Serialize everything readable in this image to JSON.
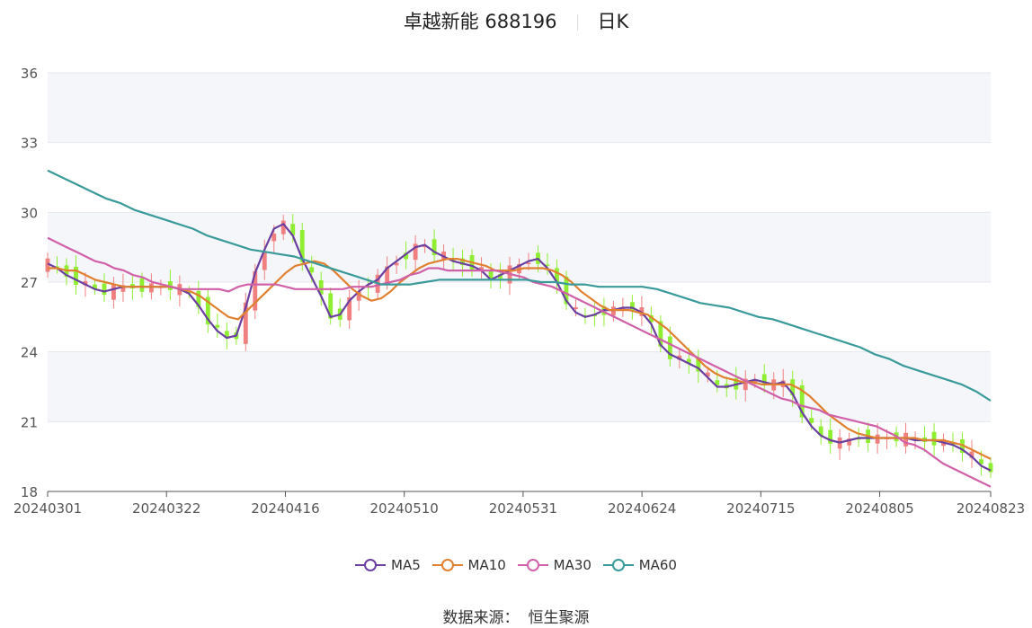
{
  "title": {
    "name": "卓越新能 688196",
    "period": "日K"
  },
  "source": {
    "label": "数据来源：",
    "value": "恒生聚源"
  },
  "colors": {
    "up": "#f08080",
    "down": "#90ee32",
    "ma5": "#6b3fa0",
    "ma10": "#e08030",
    "ma30": "#d060a8",
    "ma60": "#3a9a9a"
  },
  "chart_data": {
    "type": "candlestick",
    "ylim": [
      18,
      36
    ],
    "yticks": [
      "18",
      "21",
      "24",
      "27",
      "30",
      "33",
      "36"
    ],
    "xticks": [
      "20240301",
      "20240322",
      "20240416",
      "20240510",
      "20240531",
      "20240624",
      "20240715",
      "20240805",
      "20240823"
    ],
    "xtick_index": [
      0,
      15,
      30,
      45,
      60,
      75,
      90,
      105,
      119
    ],
    "series": [
      {
        "name": "MA5",
        "color": "#6b3fa0",
        "values": [
          27.8,
          27.6,
          27.3,
          27.1,
          26.9,
          26.7,
          26.6,
          26.7,
          26.8,
          26.8,
          26.8,
          26.8,
          26.8,
          26.8,
          26.7,
          26.5,
          26.0,
          25.4,
          24.9,
          24.6,
          24.7,
          25.9,
          27.4,
          28.4,
          29.3,
          29.5,
          29.0,
          28.0,
          27.2,
          26.4,
          25.5,
          25.6,
          26.2,
          26.6,
          26.9,
          27.1,
          27.6,
          27.9,
          28.2,
          28.5,
          28.6,
          28.3,
          28.1,
          27.9,
          27.8,
          27.7,
          27.5,
          27.1,
          27.3,
          27.5,
          27.7,
          27.9,
          28.0,
          27.6,
          27.0,
          26.2,
          25.7,
          25.5,
          25.6,
          25.8,
          25.8,
          25.9,
          25.9,
          25.7,
          25.2,
          24.3,
          23.9,
          23.7,
          23.5,
          23.3,
          22.9,
          22.5,
          22.5,
          22.6,
          22.7,
          22.8,
          22.7,
          22.6,
          22.7,
          22.2,
          21.4,
          20.8,
          20.4,
          20.2,
          20.1,
          20.2,
          20.3,
          20.3,
          20.3,
          20.3,
          20.3,
          20.3,
          20.2,
          20.2,
          20.2,
          20.1,
          20.0,
          19.8,
          19.5,
          19.1,
          18.9
        ]
      },
      {
        "name": "MA10",
        "color": "#e08030",
        "values": [
          27.6,
          27.6,
          27.5,
          27.5,
          27.3,
          27.1,
          27.0,
          26.9,
          26.8,
          26.8,
          26.8,
          26.8,
          26.8,
          26.8,
          26.7,
          26.6,
          26.4,
          26.1,
          25.8,
          25.5,
          25.4,
          25.8,
          26.2,
          26.6,
          27.0,
          27.4,
          27.7,
          27.8,
          27.9,
          27.8,
          27.5,
          27.1,
          26.7,
          26.4,
          26.2,
          26.3,
          26.6,
          27.0,
          27.3,
          27.6,
          27.8,
          27.9,
          28.0,
          28.0,
          27.9,
          27.8,
          27.7,
          27.5,
          27.5,
          27.5,
          27.6,
          27.6,
          27.6,
          27.5,
          27.3,
          27.0,
          26.6,
          26.3,
          26.0,
          25.8,
          25.8,
          25.8,
          25.7,
          25.6,
          25.3,
          25.0,
          24.6,
          24.2,
          23.8,
          23.4,
          23.1,
          22.9,
          22.8,
          22.7,
          22.7,
          22.6,
          22.6,
          22.6,
          22.6,
          22.4,
          22.1,
          21.7,
          21.3,
          21.0,
          20.7,
          20.5,
          20.4,
          20.3,
          20.3,
          20.3,
          20.3,
          20.3,
          20.2,
          20.2,
          20.2,
          20.1,
          20.0,
          19.8,
          19.6,
          19.4
        ]
      },
      {
        "name": "MA30",
        "color": "#d060a8",
        "values": [
          28.9,
          28.7,
          28.5,
          28.3,
          28.1,
          27.9,
          27.8,
          27.6,
          27.5,
          27.3,
          27.2,
          27.0,
          26.9,
          26.8,
          26.7,
          26.7,
          26.7,
          26.7,
          26.7,
          26.6,
          26.8,
          26.9,
          26.9,
          26.9,
          26.9,
          26.8,
          26.7,
          26.7,
          26.7,
          26.7,
          26.7,
          26.7,
          26.8,
          26.8,
          26.8,
          26.9,
          27.0,
          27.1,
          27.3,
          27.4,
          27.6,
          27.6,
          27.5,
          27.5,
          27.5,
          27.5,
          27.5,
          27.5,
          27.4,
          27.3,
          27.2,
          27.0,
          26.9,
          26.8,
          26.6,
          26.4,
          26.2,
          26.0,
          25.8,
          25.6,
          25.4,
          25.2,
          25.0,
          24.8,
          24.6,
          24.4,
          24.2,
          24.0,
          23.8,
          23.6,
          23.4,
          23.2,
          23.0,
          22.8,
          22.6,
          22.4,
          22.2,
          22.0,
          21.9,
          21.7,
          21.6,
          21.5,
          21.3,
          21.2,
          21.1,
          21.0,
          20.9,
          20.8,
          20.6,
          20.4,
          20.1,
          20.0,
          19.8,
          19.5,
          19.2,
          19.0,
          18.8,
          18.6,
          18.4,
          18.2
        ]
      },
      {
        "name": "MA60",
        "color": "#3a9a9a",
        "values": [
          31.8,
          31.5,
          31.2,
          30.9,
          30.6,
          30.4,
          30.1,
          29.9,
          29.7,
          29.5,
          29.3,
          29.0,
          28.8,
          28.6,
          28.4,
          28.3,
          28.2,
          28.1,
          27.9,
          27.7,
          27.5,
          27.3,
          27.1,
          26.9,
          26.9,
          26.9,
          27.0,
          27.1,
          27.1,
          27.1,
          27.1,
          27.1,
          27.1,
          27.1,
          27.0,
          27.0,
          26.9,
          26.9,
          26.8,
          26.8,
          26.8,
          26.8,
          26.7,
          26.5,
          26.3,
          26.1,
          26.0,
          25.9,
          25.7,
          25.5,
          25.4,
          25.2,
          25.0,
          24.8,
          24.6,
          24.4,
          24.2,
          23.9,
          23.7,
          23.4,
          23.2,
          23.0,
          22.8,
          22.6,
          22.3,
          21.9
        ]
      }
    ]
  }
}
